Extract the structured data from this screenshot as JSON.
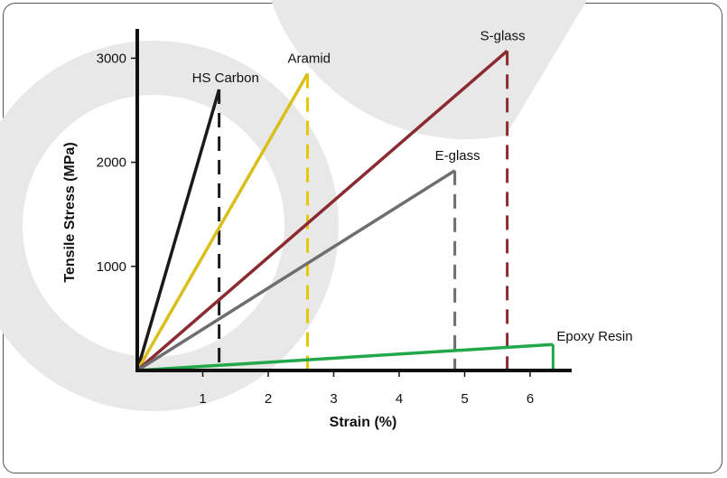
{
  "chart_data": {
    "type": "line",
    "xlabel": "Strain (%)",
    "ylabel": "Tensile Stress (MPa)",
    "xlim": [
      0,
      6.5
    ],
    "ylim": [
      0,
      3200
    ],
    "x_ticks": [
      1,
      2,
      3,
      4,
      5,
      6
    ],
    "y_ticks": [
      1000,
      2000,
      3000
    ],
    "grid": false,
    "series": [
      {
        "name": "HS Carbon",
        "color": "#1a1a1a",
        "x": [
          0,
          1.25
        ],
        "y": [
          0,
          2700
        ],
        "failure_line_color": "#1a1a1a"
      },
      {
        "name": "Aramid",
        "color": "#d9bf1a",
        "x": [
          0,
          2.6
        ],
        "y": [
          0,
          2850
        ],
        "failure_line_color": "#e6c800"
      },
      {
        "name": "S-glass",
        "color": "#8b2a30",
        "x": [
          0,
          5.65
        ],
        "y": [
          0,
          3070
        ],
        "failure_line_color": "#8b2a30"
      },
      {
        "name": "E-glass",
        "color": "#6e6e6e",
        "x": [
          0,
          4.85
        ],
        "y": [
          0,
          1920
        ],
        "failure_line_color": "#6e6e6e"
      },
      {
        "name": "Epoxy Resin",
        "color": "#22a84a",
        "x": [
          0,
          6.35
        ],
        "y": [
          0,
          250
        ],
        "failure_line_color": "#22a84a"
      }
    ]
  }
}
